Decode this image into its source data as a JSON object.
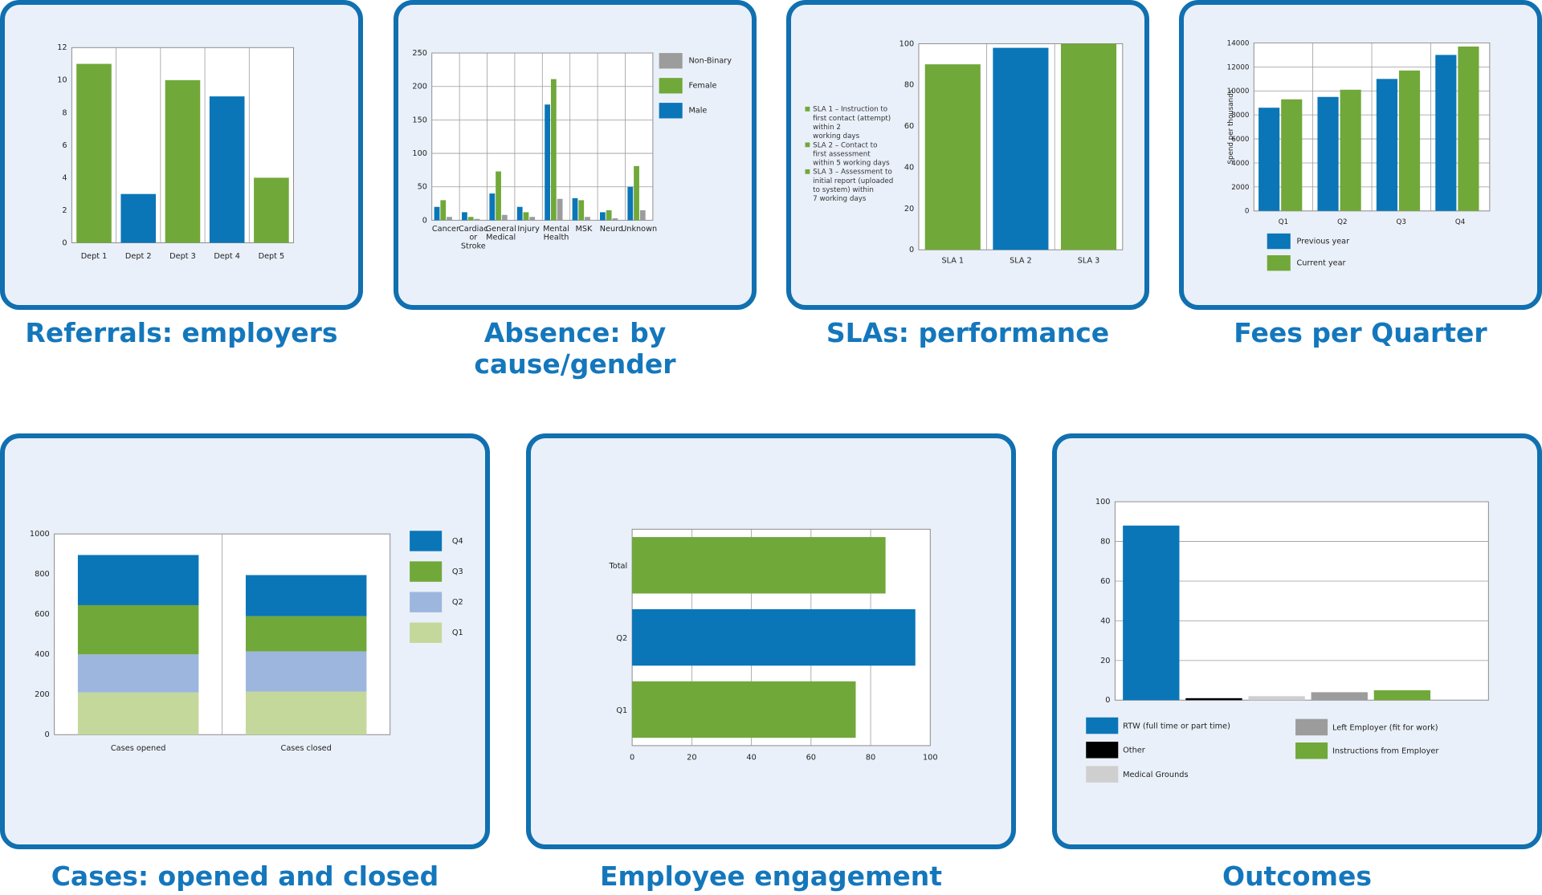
{
  "colors": {
    "blue": "#0a76b8",
    "green": "#71a83a",
    "gray": "#9c9c9c",
    "lightblue": "#9db6de",
    "lightgreen": "#c5d89c",
    "black": "#000000",
    "lightgray": "#cfcfcf",
    "border": "#1070b0",
    "panel_bg": "#eaf0f9"
  },
  "captions": {
    "referrals": "Referrals: employers",
    "absence": "Absence: by cause/gender",
    "slas": "SLAs: performance",
    "fees": "Fees per Quarter",
    "cases": "Cases: opened and closed",
    "engagement": "Employee engagement",
    "outcomes": "Outcomes"
  },
  "chart_data": [
    {
      "id": "referrals",
      "type": "bar",
      "categories": [
        "Dept 1",
        "Dept 2",
        "Dept 3",
        "Dept 4",
        "Dept 5"
      ],
      "values": [
        11,
        3,
        10,
        9,
        4
      ],
      "bar_colors": [
        "green",
        "blue",
        "green",
        "blue",
        "green"
      ],
      "ylim": [
        0,
        12
      ],
      "yticks": [
        "0",
        "2",
        "4",
        "6",
        "8",
        "10",
        "12"
      ],
      "grid": "vertical"
    },
    {
      "id": "absence",
      "type": "bar",
      "categories": [
        [
          "Cancer"
        ],
        [
          "Cardiac",
          "or",
          "Stroke"
        ],
        [
          "General",
          "Medical"
        ],
        [
          "Injury"
        ],
        [
          "Mental",
          "Health"
        ],
        [
          "MSK"
        ],
        [
          "Neuro"
        ],
        [
          "Unknown"
        ]
      ],
      "series": [
        {
          "name": "Male",
          "color": "blue",
          "values": [
            20,
            12,
            40,
            20,
            173,
            33,
            12,
            50
          ]
        },
        {
          "name": "Female",
          "color": "green",
          "values": [
            30,
            5,
            73,
            12,
            211,
            30,
            15,
            81
          ]
        },
        {
          "name": "Non-Binary",
          "color": "gray",
          "values": [
            5,
            2,
            8,
            5,
            32,
            5,
            3,
            15
          ]
        }
      ],
      "legend_order": [
        "Non-Binary",
        "Female",
        "Male"
      ],
      "ylim": [
        0,
        250
      ],
      "yticks": [
        "0",
        "50",
        "100",
        "150",
        "200",
        "250"
      ],
      "grid": "both"
    },
    {
      "id": "slas",
      "type": "bar",
      "categories": [
        "SLA 1",
        "SLA 2",
        "SLA 3"
      ],
      "values": [
        90,
        98,
        100
      ],
      "bar_colors": [
        "green",
        "blue",
        "green"
      ],
      "ylim": [
        0,
        100
      ],
      "yticks": [
        "0",
        "20",
        "40",
        "60",
        "80",
        "100"
      ],
      "legend": [
        [
          "SLA 1 – Instruction to",
          "first contact (attempt)",
          "within 2",
          "working days"
        ],
        [
          "SLA 2 – Contact to",
          "first assessment",
          "within 5 working days"
        ],
        [
          "SLA 3 – Assessment to",
          "initial report (uploaded",
          "to system) within",
          "7 working days"
        ]
      ],
      "grid": "vertical"
    },
    {
      "id": "fees",
      "type": "bar",
      "categories": [
        "Q1",
        "Q2",
        "Q3",
        "Q4"
      ],
      "series": [
        {
          "name": "Previous year",
          "color": "blue",
          "values": [
            8600,
            9500,
            11000,
            13000
          ]
        },
        {
          "name": "Current year",
          "color": "green",
          "values": [
            9300,
            10100,
            11700,
            13700
          ]
        }
      ],
      "ylabel": "Spend per thousands",
      "ylim": [
        0,
        14000
      ],
      "yticks": [
        "0",
        "2000",
        "4000",
        "6000",
        "8000",
        "10000",
        "12000",
        "14000"
      ],
      "grid": "both"
    },
    {
      "id": "cases",
      "type": "bar",
      "stacked": true,
      "categories": [
        "Cases opened",
        "Cases closed"
      ],
      "series": [
        {
          "name": "Q1",
          "color": "lightgreen",
          "values": [
            210,
            215
          ]
        },
        {
          "name": "Q2",
          "color": "lightblue",
          "values": [
            190,
            200
          ]
        },
        {
          "name": "Q3",
          "color": "green",
          "values": [
            245,
            175
          ]
        },
        {
          "name": "Q4",
          "color": "blue",
          "values": [
            250,
            205
          ]
        }
      ],
      "legend_order": [
        "Q4",
        "Q3",
        "Q2",
        "Q1"
      ],
      "ylim": [
        0,
        1000
      ],
      "yticks": [
        "0",
        "200",
        "400",
        "600",
        "800",
        "1000"
      ],
      "grid": "vertical"
    },
    {
      "id": "engagement",
      "type": "bar",
      "orientation": "horizontal",
      "categories": [
        "Total",
        "Q2",
        "Q1"
      ],
      "values": [
        85,
        95,
        75
      ],
      "bar_colors": [
        "green",
        "blue",
        "green"
      ],
      "xlim": [
        0,
        100
      ],
      "xticks": [
        "0",
        "20",
        "40",
        "60",
        "80",
        "100"
      ],
      "grid": "vertical"
    },
    {
      "id": "outcomes",
      "type": "bar",
      "categories": [
        "RTW (full time or part time)",
        "Other",
        "Medical Grounds",
        "Left Employer (fit for work)",
        "Instructions from Employer"
      ],
      "values": [
        88,
        1,
        2,
        4,
        5
      ],
      "bar_colors": [
        "blue",
        "black",
        "lightgray",
        "gray",
        "green"
      ],
      "ylim": [
        0,
        100
      ],
      "yticks": [
        "0",
        "20",
        "40",
        "60",
        "80",
        "100"
      ],
      "grid": "horizontal"
    }
  ]
}
